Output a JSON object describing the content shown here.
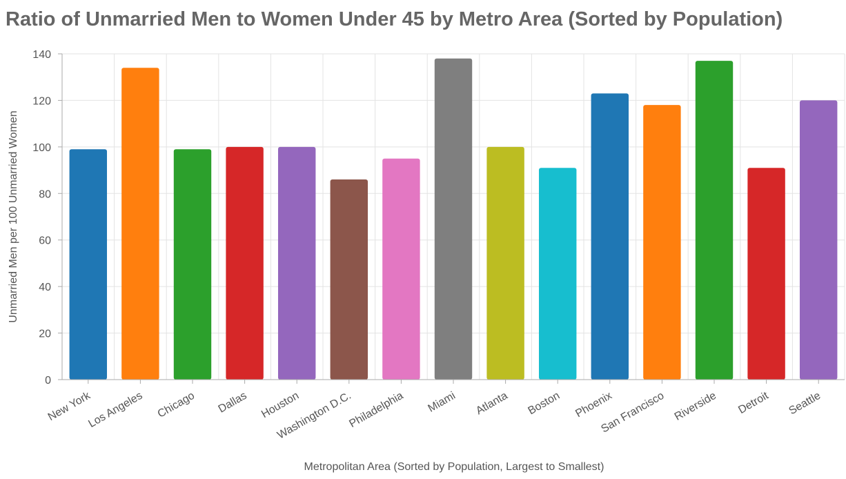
{
  "chart_data": {
    "type": "bar",
    "title": "Ratio of Unmarried Men to Women Under 45 by Metro Area (Sorted by Population)",
    "xlabel": "Metropolitan Area (Sorted by Population, Largest to Smallest)",
    "ylabel": "Unmarried Men per 100 Unmarried Women",
    "ylim": [
      0,
      140
    ],
    "yticks": [
      0,
      20,
      40,
      60,
      80,
      100,
      120,
      140
    ],
    "grid": true,
    "categories": [
      "New York",
      "Los Angeles",
      "Chicago",
      "Dallas",
      "Houston",
      "Washington D.C.",
      "Philadelphia",
      "Miami",
      "Atlanta",
      "Boston",
      "Phoenix",
      "San Francisco",
      "Riverside",
      "Detroit",
      "Seattle"
    ],
    "values": [
      99,
      134,
      99,
      100,
      100,
      86,
      95,
      138,
      100,
      91,
      123,
      118,
      137,
      91,
      120
    ],
    "colors": [
      "#1f77b4",
      "#ff7f0e",
      "#2ca02c",
      "#d62728",
      "#9467bd",
      "#8c564b",
      "#e377c2",
      "#7f7f7f",
      "#bcbd22",
      "#17becf",
      "#1f77b4",
      "#ff7f0e",
      "#2ca02c",
      "#d62728",
      "#9467bd"
    ]
  }
}
